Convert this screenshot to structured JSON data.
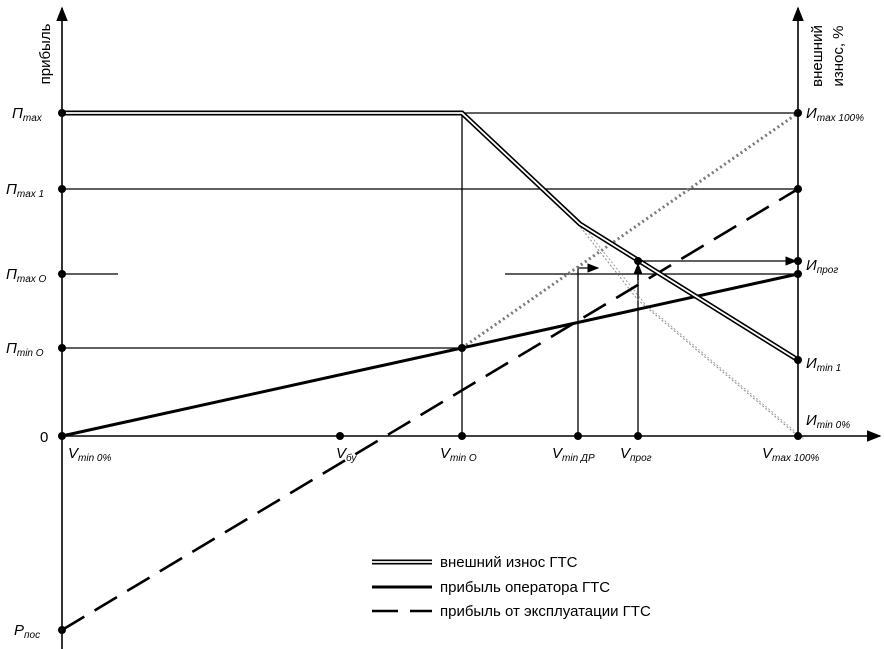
{
  "axes": {
    "left_title": "прибыль",
    "right_title_line1": "внешний",
    "right_title_line2": "износ, %"
  },
  "left_labels": {
    "p_max": {
      "main": "П",
      "sub": "max"
    },
    "p_max1": {
      "main": "П",
      "sub_i": "max",
      "sub": " 1"
    },
    "p_maxO": {
      "main": "П",
      "sub_i": "max",
      "sub": " O"
    },
    "p_minO": {
      "main": "П",
      "sub_i": "min",
      "sub": " O"
    },
    "zero": "0",
    "p_pos": {
      "main": "P",
      "sub": "пос"
    }
  },
  "right_labels": {
    "i_max": {
      "main": "И",
      "sub_i": "max",
      "sub": " 100%"
    },
    "i_prog": {
      "main": "И",
      "sub": "прог"
    },
    "i_min1": {
      "main": "И",
      "sub_i": "min",
      "sub": " 1"
    },
    "i_min0": {
      "main": "И",
      "sub_i": "min",
      "sub": " 0%"
    }
  },
  "bottom_labels": {
    "v_min0": {
      "main": "V",
      "sub_i": "min",
      "sub": " 0%"
    },
    "v_bu": {
      "main": "V",
      "sub": "бу"
    },
    "v_minO": {
      "main": "V",
      "sub_i": "min",
      "sub": " O"
    },
    "v_minDR": {
      "main": "V",
      "sub_i": "min",
      "sub": " ДР"
    },
    "v_prog": {
      "main": "V",
      "sub": "прог"
    },
    "v_max": {
      "main": "V",
      "sub_i": "max",
      "sub": " 100%"
    }
  },
  "legend": [
    {
      "style": "double",
      "label": "внешний износ ГТС"
    },
    {
      "style": "solid",
      "label": "прибыль оператора ГТС"
    },
    {
      "style": "dashed",
      "label": "прибыль от эксплуатации ГТС"
    }
  ],
  "colors": {
    "line": "#000000",
    "dotted_gray": "#7a7a7a"
  }
}
